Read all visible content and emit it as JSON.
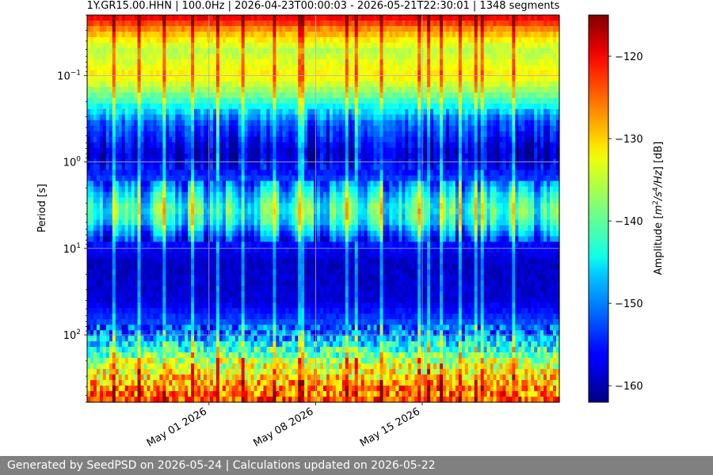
{
  "footer": {
    "text": "Generated by SeedPSD on 2026-05-24 | Calculations updated on 2026-05-22"
  },
  "chart_data": {
    "type": "heatmap",
    "title": "1Y.GR15.00.HHN | 100.0Hz | 2026-04-23T00:00:03 - 2026-05-21T22:30:01 | 1348 segments",
    "ylabel": "Period [s]",
    "y_scale": "log",
    "y_inverted": true,
    "ylim": [
      0.02,
      600
    ],
    "xlim": [
      "2026-04-23",
      "2026-05-24"
    ],
    "x_ticks": [
      {
        "value": "2026-05-01",
        "label": "May 01 2026"
      },
      {
        "value": "2026-05-08",
        "label": "May 08 2026"
      },
      {
        "value": "2026-05-15",
        "label": "May 15 2026"
      }
    ],
    "y_ticks": [
      {
        "value": 0.1,
        "base": "10",
        "exp": "−1"
      },
      {
        "value": 1,
        "base": "10",
        "exp": "0"
      },
      {
        "value": 10,
        "base": "10",
        "exp": "1"
      },
      {
        "value": 100,
        "base": "10",
        "exp": "2"
      }
    ],
    "grid": true,
    "colorbar": {
      "label_prefix": "Amplitude [",
      "label_m": "m",
      "label_sup1": "2",
      "label_s": "/s",
      "label_sup2": "4",
      "label_hz": "/Hz",
      "label_suffix": "] [dB]",
      "range": [
        -162,
        -115
      ],
      "ticks": [
        -120,
        -130,
        -140,
        -150,
        -160
      ],
      "tick_labels": [
        "−120",
        "−130",
        "−140",
        "−150",
        "−160"
      ],
      "colormap": "jet"
    },
    "amplitude_profile_db": [
      {
        "period": 0.02,
        "db": -119
      },
      {
        "period": 0.03,
        "db": -128
      },
      {
        "period": 0.05,
        "db": -136
      },
      {
        "period": 0.1,
        "db": -132
      },
      {
        "period": 0.18,
        "db": -140
      },
      {
        "period": 0.35,
        "db": -152
      },
      {
        "period": 0.8,
        "db": -159
      },
      {
        "period": 1.5,
        "db": -154
      },
      {
        "period": 2.5,
        "db": -146
      },
      {
        "period": 3.5,
        "db": -142
      },
      {
        "period": 5,
        "db": -145
      },
      {
        "period": 8,
        "db": -155
      },
      {
        "period": 15,
        "db": -159
      },
      {
        "period": 40,
        "db": -158
      },
      {
        "period": 100,
        "db": -150
      },
      {
        "period": 200,
        "db": -136
      },
      {
        "period": 400,
        "db": -128
      },
      {
        "period": 600,
        "db": -124
      }
    ]
  }
}
